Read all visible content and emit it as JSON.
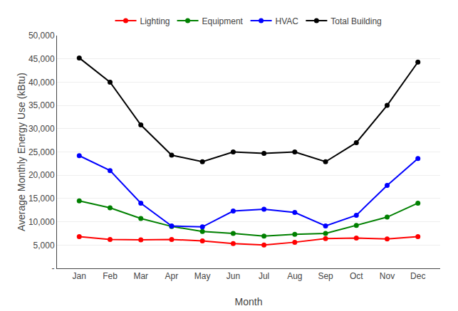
{
  "chart_data": {
    "type": "line",
    "categories": [
      "Jan",
      "Feb",
      "Mar",
      "Apr",
      "May",
      "Jun",
      "Jul",
      "Aug",
      "Sep",
      "Oct",
      "Nov",
      "Dec"
    ],
    "series": [
      {
        "name": "Lighting",
        "color": "#FF0000",
        "values": [
          6800,
          6200,
          6100,
          6200,
          5900,
          5300,
          5000,
          5600,
          6400,
          6500,
          6300,
          6800
        ]
      },
      {
        "name": "Equipment",
        "color": "#008000",
        "values": [
          14500,
          13000,
          10700,
          9000,
          7900,
          7500,
          6900,
          7300,
          7500,
          9200,
          11000,
          14000
        ]
      },
      {
        "name": "HVAC",
        "color": "#0000FF",
        "values": [
          24200,
          21000,
          14000,
          9100,
          8900,
          12300,
          12700,
          12000,
          9100,
          11400,
          17800,
          23600
        ]
      },
      {
        "name": "Total Building",
        "color": "#000000",
        "values": [
          45200,
          40000,
          30800,
          24300,
          22900,
          25000,
          24700,
          25000,
          22900,
          27000,
          35000,
          44300
        ]
      }
    ],
    "x_label": "Month",
    "y_label": "Average Monthly Energy Use (kBtu)",
    "ylim": [
      0,
      50000
    ],
    "yticks": [
      {
        "value": 0,
        "label": "-"
      },
      {
        "value": 5000,
        "label": "5,000"
      },
      {
        "value": 10000,
        "label": "10,000"
      },
      {
        "value": 15000,
        "label": "15,000"
      },
      {
        "value": 20000,
        "label": "20,000"
      },
      {
        "value": 25000,
        "label": "25,000"
      },
      {
        "value": 30000,
        "label": "30,000"
      },
      {
        "value": 35000,
        "label": "35,000"
      },
      {
        "value": 40000,
        "label": "40,000"
      },
      {
        "value": 45000,
        "label": "45,000"
      },
      {
        "value": 50000,
        "label": "50,000"
      }
    ],
    "grid": true,
    "legend": "top",
    "marker": "circle"
  }
}
